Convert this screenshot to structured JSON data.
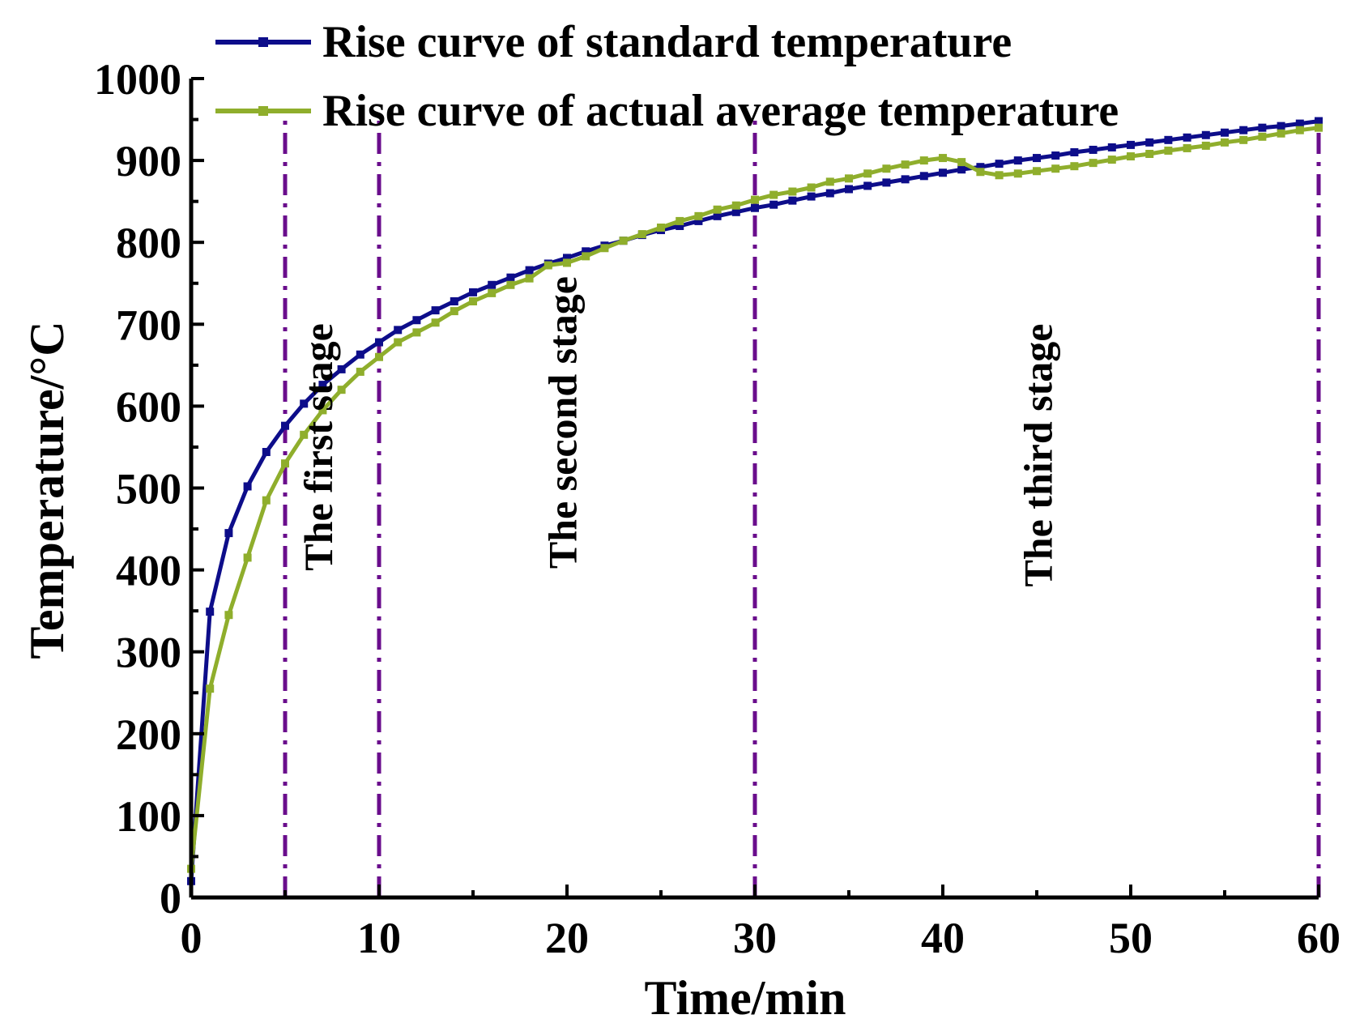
{
  "chart_data": {
    "type": "line",
    "title": "",
    "xlabel": "Time/min",
    "ylabel": "Temperature/°C",
    "xlim": [
      0,
      60
    ],
    "ylim": [
      0,
      1000
    ],
    "xticks": [
      0,
      10,
      20,
      30,
      40,
      50,
      60
    ],
    "yticks": [
      0,
      100,
      200,
      300,
      400,
      500,
      600,
      700,
      800,
      900,
      1000
    ],
    "legend_position": "top",
    "series": [
      {
        "name": "Rise curve of standard temperature",
        "color": "#0d0d8a",
        "marker": "square",
        "x": [
          0,
          1,
          2,
          3,
          4,
          5,
          6,
          7,
          8,
          9,
          10,
          11,
          12,
          13,
          14,
          15,
          16,
          17,
          18,
          19,
          20,
          21,
          22,
          23,
          24,
          25,
          26,
          27,
          28,
          29,
          30,
          31,
          32,
          33,
          34,
          35,
          36,
          37,
          38,
          39,
          40,
          41,
          42,
          43,
          44,
          45,
          46,
          47,
          48,
          49,
          50,
          51,
          52,
          53,
          54,
          55,
          56,
          57,
          58,
          59,
          60
        ],
        "values": [
          20,
          349,
          445,
          502,
          544,
          576,
          603,
          626,
          645,
          663,
          678,
          693,
          705,
          717,
          728,
          739,
          748,
          757,
          766,
          774,
          781,
          789,
          796,
          802,
          809,
          815,
          820,
          826,
          832,
          837,
          842,
          846,
          851,
          856,
          860,
          865,
          869,
          873,
          877,
          881,
          885,
          889,
          892,
          896,
          900,
          903,
          906,
          910,
          913,
          916,
          919,
          922,
          925,
          928,
          931,
          934,
          937,
          940,
          942,
          945,
          948
        ]
      },
      {
        "name": "Rise curve of actual average temperature",
        "color": "#8fae2c",
        "marker": "square",
        "x": [
          0,
          1,
          2,
          3,
          4,
          5,
          6,
          7,
          8,
          9,
          10,
          11,
          12,
          13,
          14,
          15,
          16,
          17,
          18,
          19,
          20,
          21,
          22,
          23,
          24,
          25,
          26,
          27,
          28,
          29,
          30,
          31,
          32,
          33,
          34,
          35,
          36,
          37,
          38,
          39,
          40,
          41,
          42,
          43,
          44,
          45,
          46,
          47,
          48,
          49,
          50,
          51,
          52,
          53,
          54,
          55,
          56,
          57,
          58,
          59,
          60
        ],
        "values": [
          35,
          255,
          345,
          415,
          485,
          530,
          565,
          595,
          620,
          642,
          660,
          678,
          690,
          702,
          716,
          728,
          738,
          748,
          756,
          772,
          775,
          783,
          793,
          802,
          810,
          818,
          826,
          832,
          840,
          845,
          852,
          858,
          862,
          867,
          874,
          878,
          884,
          890,
          895,
          900,
          903,
          898,
          886,
          882,
          884,
          887,
          890,
          893,
          897,
          901,
          905,
          908,
          912,
          915,
          918,
          922,
          925,
          929,
          933,
          937,
          940
        ]
      }
    ],
    "stage_lines": [
      5,
      10,
      30,
      60
    ],
    "stage_line_color": "#6a0d8c",
    "annotations": [
      {
        "text": "The first stage",
        "x": 7.5,
        "y": 550
      },
      {
        "text": "The second stage",
        "x": 20.5,
        "y": 580
      },
      {
        "text": "The third stage",
        "x": 45.8,
        "y": 540
      }
    ]
  }
}
